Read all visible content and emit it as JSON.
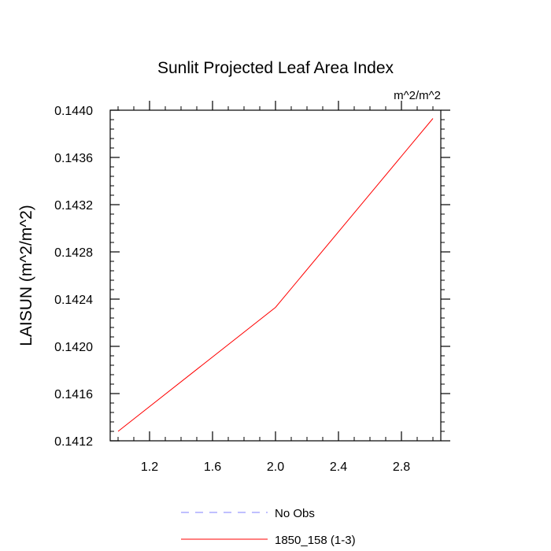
{
  "chart_data": {
    "type": "line",
    "title": "Sunlit Projected Leaf Area Index",
    "units_label": "m^2/m^2",
    "xlabel": "",
    "ylabel": "LAISUN  (m^2/m^2)",
    "xlim": [
      0.95,
      3.05
    ],
    "ylim": [
      0.1412,
      0.144
    ],
    "x_ticks": [
      1.2,
      1.6,
      2.0,
      2.4,
      2.8
    ],
    "x_tick_labels": [
      "1.2",
      "1.6",
      "2.0",
      "2.4",
      "2.8"
    ],
    "y_ticks": [
      0.1412,
      0.1416,
      0.142,
      0.1424,
      0.1428,
      0.1432,
      0.1436,
      0.144
    ],
    "y_tick_labels": [
      "0.1412",
      "0.1416",
      "0.1420",
      "0.1424",
      "0.1428",
      "0.1432",
      "0.1436",
      "0.1440"
    ],
    "grid": false,
    "legend_position": "bottom-center",
    "series": [
      {
        "name": "1850_158 (1-3)",
        "color": "#ff0000",
        "style": "solid",
        "x": [
          1,
          2,
          3
        ],
        "values": [
          0.14128,
          0.14233,
          0.14393
        ]
      }
    ],
    "legend": [
      {
        "label": "No Obs",
        "color": "#8080ff",
        "style": "dashed"
      },
      {
        "label": "1850_158 (1-3)",
        "color": "#ff0000",
        "style": "solid"
      }
    ]
  }
}
